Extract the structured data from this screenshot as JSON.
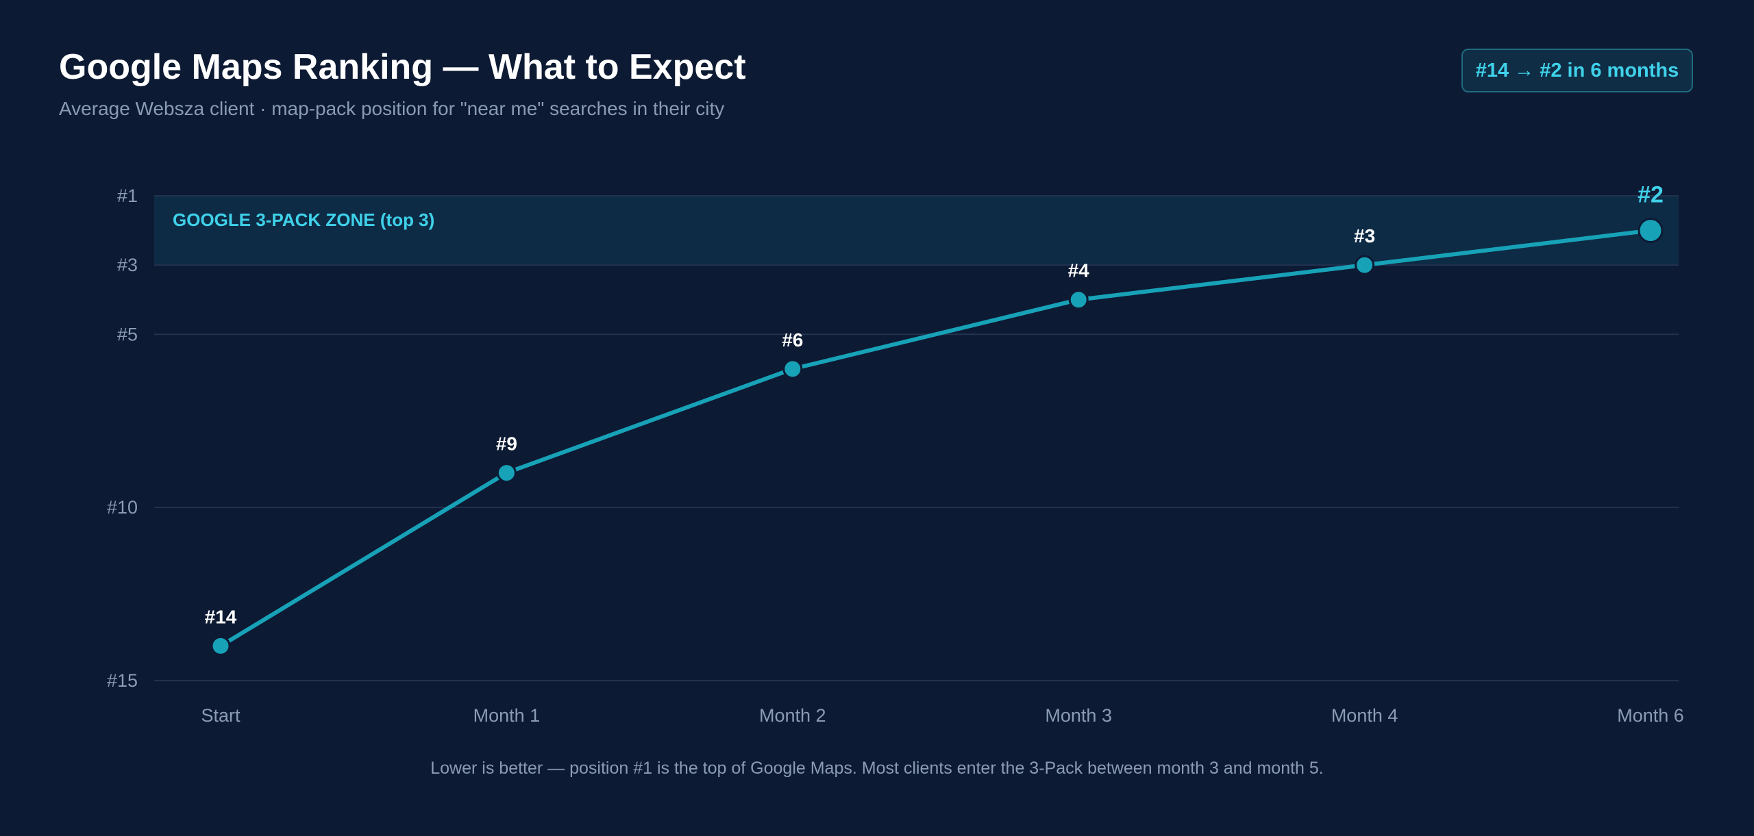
{
  "header": {
    "title": "Google Maps Ranking — What to Expect",
    "subtitle": "Average Websza client · map-pack position for \"near me\" searches in their city",
    "badge": "#14 → #2 in 6 months"
  },
  "footnote": "Lower is better — position #1 is the top of Google Maps. Most clients enter the 3-Pack between month 3 and month 5.",
  "colors": {
    "background": "#0d1a33",
    "line": "#17a2b8",
    "accent": "#3fd2ea",
    "zone": "#0e2b45",
    "grid": "#22324f"
  },
  "chart_data": {
    "type": "line",
    "categories": [
      "Start",
      "Month 1",
      "Month 2",
      "Month 3",
      "Month 4",
      "Month 6"
    ],
    "values": [
      14,
      9,
      6,
      4,
      3,
      2
    ],
    "point_labels": [
      "#14",
      "#9",
      "#6",
      "#4",
      "#3",
      "#2"
    ],
    "y_ticks": [
      1,
      3,
      5,
      10,
      15
    ],
    "y_tick_labels": [
      "#1",
      "#3",
      "#5",
      "#10",
      "#15"
    ],
    "ylim": [
      1,
      15
    ],
    "y_inverted": true,
    "grid": true,
    "zone": {
      "label": "GOOGLE 3-PACK ZONE (top 3)",
      "from": 1,
      "to": 3
    },
    "title": "Google Maps Ranking — What to Expect",
    "xlabel": "",
    "ylabel": ""
  }
}
